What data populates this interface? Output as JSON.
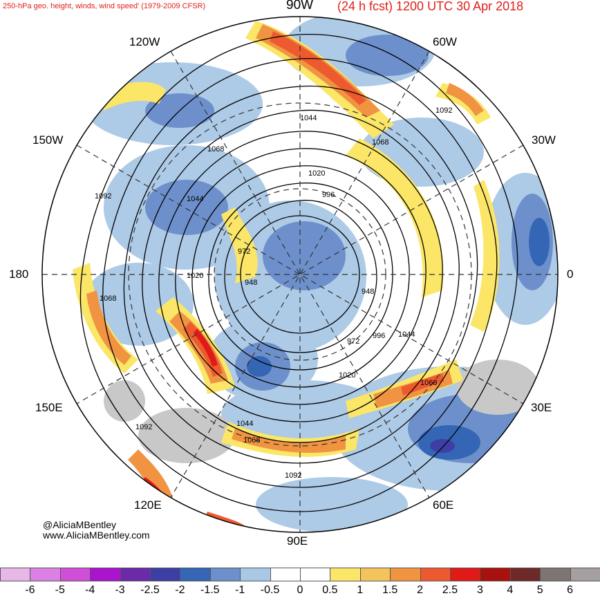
{
  "header": {
    "left_title": "250-hPa geo. height, winds, wind speed' (1979-2009 CFSR)",
    "right_title": "(24 h fcst) 1200 UTC 30 Apr 2018",
    "top_lon": "90W"
  },
  "longitude_labels": {
    "lon_120w": "120W",
    "lon_60w": "60W",
    "lon_150w": "150W",
    "lon_30w": "30W",
    "lon_180": "180",
    "lon_0": "0",
    "lon_150e": "150E",
    "lon_30e": "30E",
    "lon_120e": "120E",
    "lon_60e": "60E",
    "lon_90e": "90E"
  },
  "contour_labels": [
    "1092",
    "1044",
    "1092",
    "1068",
    "1068",
    "1044",
    "1020",
    "996",
    "1020",
    "972",
    "948",
    "948",
    "1068",
    "972",
    "996",
    "1044",
    "1020",
    "1068",
    "1044",
    "1068",
    "1092",
    "1092"
  ],
  "credit": {
    "handle": "@AliciaMBentley",
    "website": "www.AliciaMBentley.com"
  },
  "colorbar": {
    "ticks": [
      "-6",
      "-5",
      "-4",
      "-3",
      "-2.5",
      "-2",
      "-1.5",
      "-1",
      "-0.5",
      "0",
      "0.5",
      "1",
      "1.5",
      "2",
      "2.5",
      "3",
      "4",
      "5",
      "6"
    ],
    "colors": [
      "#e7b7e8",
      "#dd80e3",
      "#cf4fd8",
      "#aa14cf",
      "#6c2aa8",
      "#3e3fa5",
      "#3466b5",
      "#6d90cc",
      "#a9c8e5",
      "#ffffff",
      "#ffffff",
      "#fbe668",
      "#f3c45b",
      "#f09442",
      "#ee5a2f",
      "#e01a19",
      "#a7120f",
      "#6e2a28",
      "#7d7474",
      "#a69f9f"
    ]
  }
}
